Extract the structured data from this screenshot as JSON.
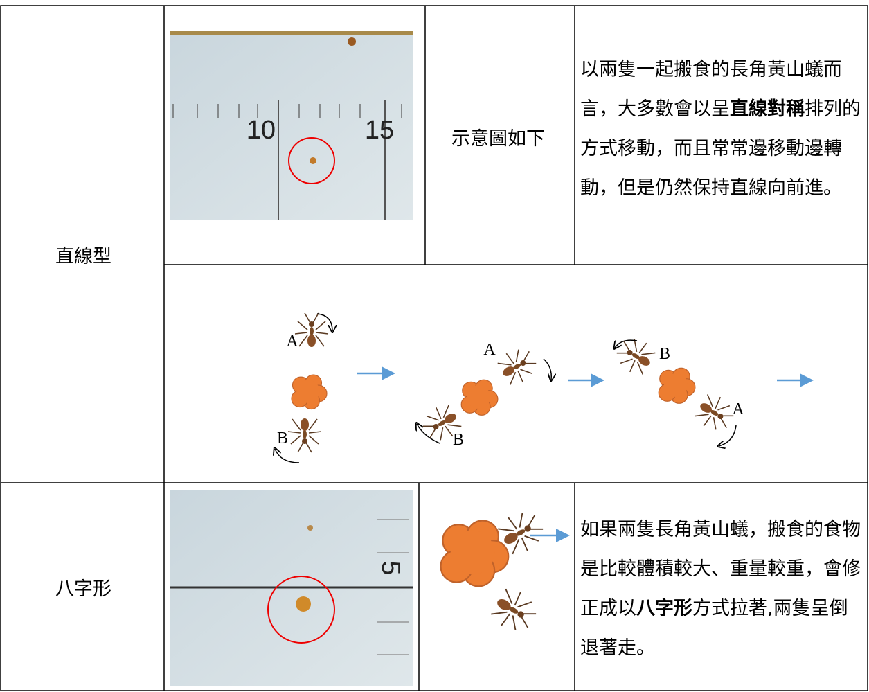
{
  "rows": [
    {
      "label": "直線型",
      "photo_text": [
        "10",
        "15"
      ],
      "caption": "示意圖如下",
      "description": [
        {
          "text": "以兩隻一起搬食的長角黃山蟻而言，大多數會以呈",
          "bold": false
        },
        {
          "text": "直線對稱",
          "bold": true
        },
        {
          "text": "排列的方式移動，而且常常邊移動邊轉動，但是仍然保持直線向前進。",
          "bold": false
        }
      ],
      "diagram_labels": [
        "A",
        "B",
        "A",
        "B",
        "B",
        "A"
      ]
    },
    {
      "label": "八字形",
      "photo_text": [
        "5"
      ],
      "description": [
        {
          "text": "如果兩隻長角黃山蟻，搬食的食物是比較體積較大、重量較重，會修正成以",
          "bold": false
        },
        {
          "text": "八字形",
          "bold": true
        },
        {
          "text": "方式拉著,兩隻呈倒退著走。",
          "bold": false
        }
      ]
    }
  ]
}
